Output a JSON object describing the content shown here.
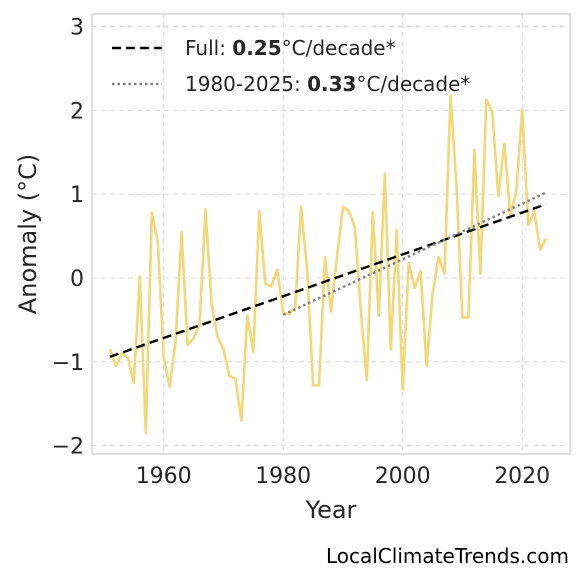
{
  "chart_data": {
    "type": "line",
    "title": "",
    "xlabel": "Year",
    "ylabel": "Anomaly (°C)",
    "xlim": [
      1948,
      2028
    ],
    "ylim": [
      -2.1,
      3.15
    ],
    "xticks": [
      1960,
      1980,
      2000,
      2020
    ],
    "yticks": [
      -2,
      -1,
      0,
      1,
      2,
      3
    ],
    "ytick_labels": [
      "−2",
      "−1",
      "0",
      "1",
      "2",
      "3"
    ],
    "grid": true,
    "legend_position": "top-left",
    "series": [
      {
        "style": "solid",
        "color": "#f2d878",
        "x": [
          1951,
          1952,
          1953,
          1954,
          1955,
          1956,
          1957,
          1958,
          1959,
          1960,
          1961,
          1962,
          1963,
          1964,
          1965,
          1966,
          1967,
          1968,
          1969,
          1970,
          1971,
          1972,
          1973,
          1974,
          1975,
          1976,
          1977,
          1978,
          1979,
          1980,
          1981,
          1982,
          1983,
          1984,
          1985,
          1986,
          1987,
          1988,
          1989,
          1990,
          1991,
          1992,
          1993,
          1994,
          1995,
          1996,
          1997,
          1998,
          1999,
          2000,
          2001,
          2002,
          2003,
          2004,
          2005,
          2006,
          2007,
          2008,
          2009,
          2010,
          2011,
          2012,
          2013,
          2014,
          2015,
          2016,
          2017,
          2018,
          2019,
          2020,
          2021,
          2022,
          2023,
          2024
        ],
        "y": [
          -0.85,
          -1.05,
          -0.9,
          -0.95,
          -1.25,
          0.02,
          -1.85,
          0.78,
          0.45,
          -0.95,
          -1.3,
          -0.75,
          0.55,
          -0.8,
          -0.72,
          -0.55,
          0.82,
          -0.3,
          -0.7,
          -0.85,
          -1.17,
          -1.2,
          -1.7,
          -0.45,
          -0.88,
          0.8,
          -0.07,
          -0.1,
          0.1,
          -0.42,
          -0.43,
          -0.35,
          0.85,
          0.1,
          -1.28,
          -1.28,
          0.25,
          -0.4,
          0.25,
          0.85,
          0.8,
          0.6,
          -0.4,
          -1.22,
          0.78,
          -0.45,
          1.24,
          -0.85,
          0.57,
          -1.33,
          0.18,
          -0.12,
          0.08,
          -1.05,
          -0.18,
          0.25,
          0.05,
          2.18,
          1.1,
          -0.47,
          -0.47,
          1.53,
          0.05,
          2.13,
          1.98,
          0.98,
          1.6,
          0.75,
          1.02,
          2.01,
          0.63,
          0.8,
          0.34,
          0.47
        ]
      }
    ],
    "trends": [
      {
        "name": "Full",
        "style": "dashed",
        "color": "#000000",
        "x": [
          1951,
          2024
        ],
        "y": [
          -0.94,
          0.88
        ]
      },
      {
        "name": "1980-2025",
        "style": "dotted",
        "color": "#808080",
        "x": [
          1980,
          2024
        ],
        "y": [
          -0.44,
          1.02
        ]
      }
    ],
    "legend": [
      {
        "prefix": "Full: ",
        "value": "0.25",
        "suffix": "°C/decade*",
        "style": "dashed",
        "color": "#000000"
      },
      {
        "prefix": "1980-2025: ",
        "value": "0.33",
        "suffix": "°C/decade*",
        "style": "dotted",
        "color": "#808080"
      }
    ]
  },
  "watermark": "LocalClimateTrends.com"
}
